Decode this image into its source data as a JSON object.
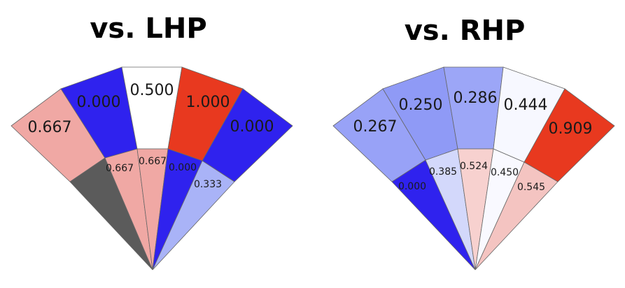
{
  "chart_data": [
    {
      "type": "spray-fan",
      "title": "vs. LHP",
      "outer_zones": [
        {
          "label": "0.667",
          "value": 0.667,
          "color": "#f0a8a4"
        },
        {
          "label": "0.000",
          "value": 0.0,
          "color": "#2f22ee"
        },
        {
          "label": "0.500",
          "value": 0.5,
          "color": "#ffffff"
        },
        {
          "label": "1.000",
          "value": 1.0,
          "color": "#e8391f"
        },
        {
          "label": "0.000",
          "value": 0.0,
          "color": "#2f22ee"
        }
      ],
      "inner_zones": [
        {
          "label": "",
          "value": null,
          "color": "#5b5b5b"
        },
        {
          "label": "0.667",
          "value": 0.667,
          "color": "#f0a8a4"
        },
        {
          "label": "0.667",
          "value": 0.667,
          "color": "#f0a8a4"
        },
        {
          "label": "0.000",
          "value": 0.0,
          "color": "#2f22ee"
        },
        {
          "label": "0.333",
          "value": 0.333,
          "color": "#a9b3f7"
        }
      ]
    },
    {
      "type": "spray-fan",
      "title": "vs. RHP",
      "outer_zones": [
        {
          "label": "0.267",
          "value": 0.267,
          "color": "#98a2f7"
        },
        {
          "label": "0.250",
          "value": 0.25,
          "color": "#8f9af6"
        },
        {
          "label": "0.286",
          "value": 0.286,
          "color": "#9ca6f7"
        },
        {
          "label": "0.444",
          "value": 0.444,
          "color": "#f7f8ff"
        },
        {
          "label": "0.909",
          "value": 0.909,
          "color": "#e8391f"
        }
      ],
      "inner_zones": [
        {
          "label": "0.000",
          "value": 0.0,
          "color": "#2f22ee"
        },
        {
          "label": "0.385",
          "value": 0.385,
          "color": "#d3d8fb"
        },
        {
          "label": "0.524",
          "value": 0.524,
          "color": "#f7d1cf"
        },
        {
          "label": "0.450",
          "value": 0.45,
          "color": "#f9f9ff"
        },
        {
          "label": "0.545",
          "value": 0.545,
          "color": "#f4c4c1"
        }
      ]
    }
  ]
}
